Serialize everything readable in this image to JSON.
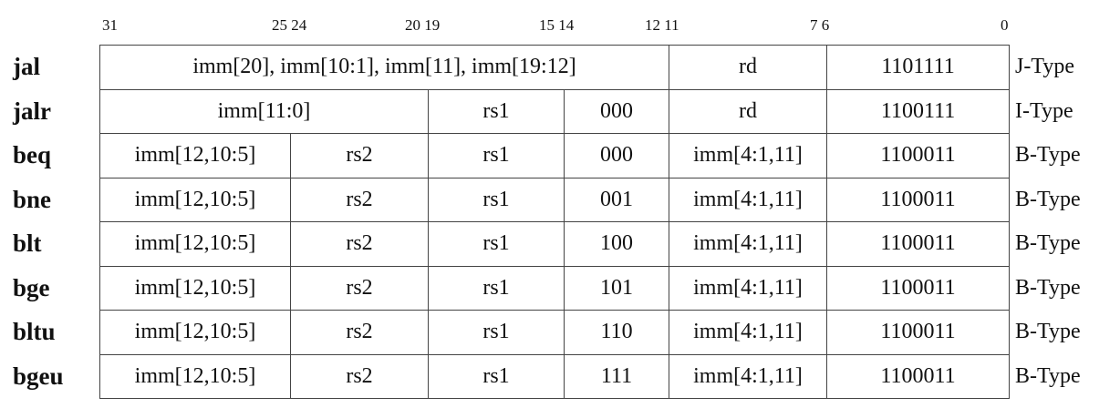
{
  "bit_positions": {
    "b31": "31",
    "b25_24": "25 24",
    "b20_19": "20 19",
    "b15_14": "15 14",
    "b12_11": "12 11",
    "b7_6": "7 6",
    "b0": "0"
  },
  "rows": [
    {
      "mnemonic": "jal",
      "fields": {
        "imm": "imm[20], imm[10:1], imm[11], imm[19:12]",
        "rd": "rd",
        "opcode": "1101111"
      },
      "type": "J-Type"
    },
    {
      "mnemonic": "jalr",
      "fields": {
        "imm": "imm[11:0]",
        "rs1": "rs1",
        "funct3": "000",
        "rd": "rd",
        "opcode": "1100111"
      },
      "type": "I-Type"
    },
    {
      "mnemonic": "beq",
      "fields": {
        "imm_hi": "imm[12,10:5]",
        "rs2": "rs2",
        "rs1": "rs1",
        "funct3": "000",
        "imm_lo": "imm[4:1,11]",
        "opcode": "1100011"
      },
      "type": "B-Type"
    },
    {
      "mnemonic": "bne",
      "fields": {
        "imm_hi": "imm[12,10:5]",
        "rs2": "rs2",
        "rs1": "rs1",
        "funct3": "001",
        "imm_lo": "imm[4:1,11]",
        "opcode": "1100011"
      },
      "type": "B-Type"
    },
    {
      "mnemonic": "blt",
      "fields": {
        "imm_hi": "imm[12,10:5]",
        "rs2": "rs2",
        "rs1": "rs1",
        "funct3": "100",
        "imm_lo": "imm[4:1,11]",
        "opcode": "1100011"
      },
      "type": "B-Type"
    },
    {
      "mnemonic": "bge",
      "fields": {
        "imm_hi": "imm[12,10:5]",
        "rs2": "rs2",
        "rs1": "rs1",
        "funct3": "101",
        "imm_lo": "imm[4:1,11]",
        "opcode": "1100011"
      },
      "type": "B-Type"
    },
    {
      "mnemonic": "bltu",
      "fields": {
        "imm_hi": "imm[12,10:5]",
        "rs2": "rs2",
        "rs1": "rs1",
        "funct3": "110",
        "imm_lo": "imm[4:1,11]",
        "opcode": "1100011"
      },
      "type": "B-Type"
    },
    {
      "mnemonic": "bgeu",
      "fields": {
        "imm_hi": "imm[12,10:5]",
        "rs2": "rs2",
        "rs1": "rs1",
        "funct3": "111",
        "imm_lo": "imm[4:1,11]",
        "opcode": "1100011"
      },
      "type": "B-Type"
    }
  ]
}
